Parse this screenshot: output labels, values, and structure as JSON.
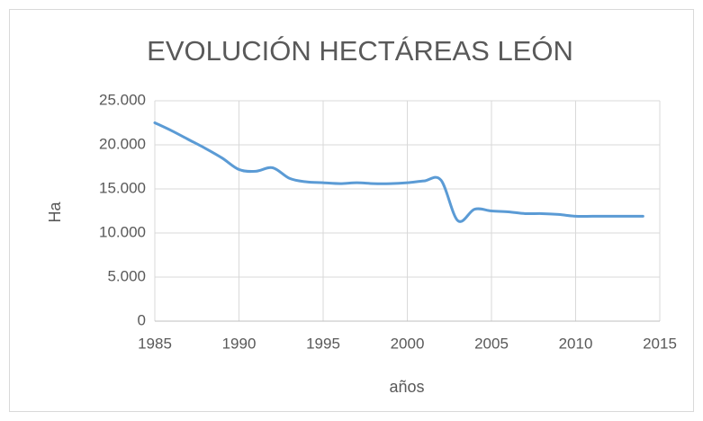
{
  "chart_data": {
    "type": "line",
    "title": "EVOLUCIÓN HECTÁREAS LEÓN",
    "x_label": "años",
    "y_label": "Ha",
    "x": [
      1985,
      1986,
      1987,
      1988,
      1989,
      1990,
      1991,
      1992,
      1993,
      1994,
      1995,
      1996,
      1997,
      1998,
      1999,
      2000,
      2001,
      2002,
      2003,
      2004,
      2005,
      2006,
      2007,
      2008,
      2009,
      2010,
      2011,
      2012,
      2013,
      2014
    ],
    "series": [
      {
        "name": "Ha",
        "color": "#5b9bd5",
        "values": [
          22500,
          21600,
          20600,
          19600,
          18500,
          17200,
          17000,
          17400,
          16200,
          15800,
          15700,
          15600,
          15700,
          15600,
          15600,
          15700,
          15900,
          16000,
          11400,
          12700,
          12500,
          12400,
          12200,
          12200,
          12100,
          11900,
          11900,
          11900,
          11900,
          11900
        ]
      }
    ],
    "xlim": [
      1985,
      2015
    ],
    "xticks": [
      1985,
      1990,
      1995,
      2000,
      2005,
      2010,
      2015
    ],
    "ylim": [
      0,
      25000
    ],
    "yticks": [
      0,
      {
        "value": 5000,
        "label": "5.000"
      },
      {
        "value": 10000,
        "label": "10.000"
      },
      {
        "value": 15000,
        "label": "15.000"
      },
      {
        "value": 20000,
        "label": "20.000"
      },
      {
        "value": 25000,
        "label": "25.000"
      }
    ],
    "grid": true
  }
}
